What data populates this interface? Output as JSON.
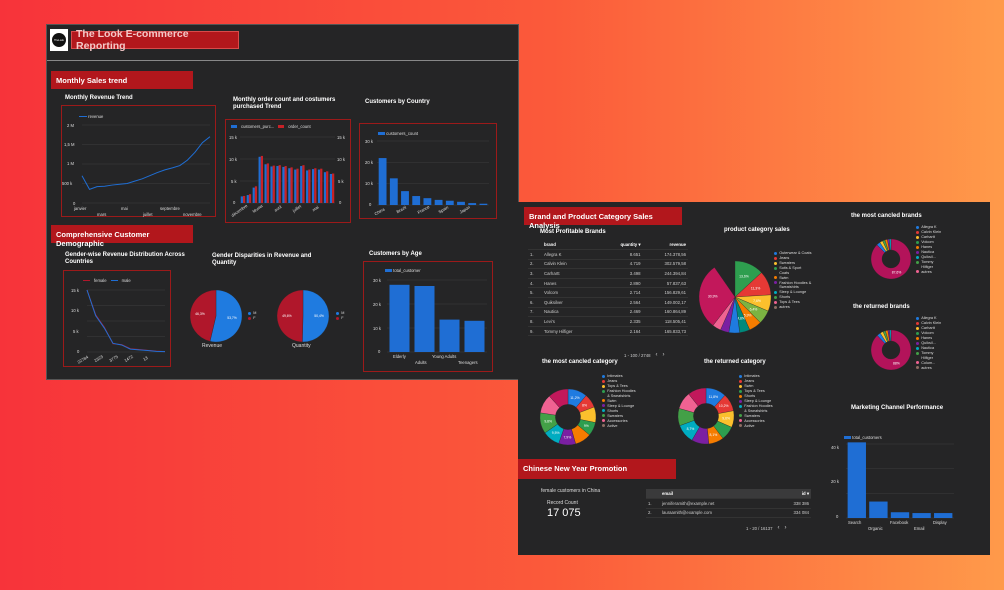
{
  "report1": {
    "title": "The Look E-commerce Reporting",
    "logo_text": "TheLook",
    "section_monthly": "Monthly Sales trend",
    "section_demo": "Comprehensive Customer Demographic",
    "monthly_revenue": {
      "title": "Monthly Revenue Trend",
      "legend": "revenue",
      "y_ticks": [
        "2 M",
        "1,5 M",
        "1 M",
        "500 k",
        "0"
      ],
      "x_ticks": [
        "janvier",
        "mars",
        "mai",
        "juillet",
        "septembre",
        "novembre"
      ]
    },
    "order_count": {
      "title": "Monthly order count and costumers purchased Trend",
      "legend": [
        "customers_purc...",
        "order_count"
      ],
      "y_ticks_left": [
        "15 k",
        "10 k",
        "5 k",
        "0"
      ],
      "y_ticks_right": [
        "15 k",
        "10 k",
        "5 k",
        "0"
      ],
      "x_ticks": [
        "décembre",
        "février",
        "avril",
        "juillet",
        "mai"
      ]
    },
    "customers_country": {
      "title": "Customers by Country",
      "legend": "customers_count",
      "y_ticks": [
        "30 k",
        "20 k",
        "10 k",
        "0"
      ],
      "x_ticks": [
        "China",
        "Brazil",
        "France",
        "Spain",
        "Japon"
      ]
    },
    "gender_revenue": {
      "title": "Gender-wise Revenue Distribution Across Countries",
      "legend": [
        "female",
        "male"
      ],
      "y_ticks": [
        "15 k",
        "10 k",
        "5 k",
        "0"
      ],
      "x_ticks": [
        "22784",
        "2323",
        "3775",
        "1472",
        "13"
      ]
    },
    "gender_disparities": {
      "title": "Gender Disparities in Revenue and Quantity",
      "pies": [
        {
          "label": "Revenue",
          "f_pct": "46,3%",
          "m_pct": "53,7%"
        },
        {
          "label": "Quantity",
          "f_pct": "49,6%",
          "m_pct": "50,4%"
        }
      ],
      "legend": [
        "M",
        "F"
      ]
    },
    "customers_age": {
      "title": "Customers by Age",
      "legend": "total_customer",
      "y_ticks": [
        "30 k",
        "20 k",
        "10 k",
        "0"
      ],
      "x_ticks": [
        "Elderly",
        "Adults",
        "Young Adults",
        "Teenagers"
      ]
    }
  },
  "report2": {
    "section_brand": "Brand and Product Category Sales Analysis",
    "profitable_title": "Most Profitable Brands",
    "table_headers": {
      "brand": "brand",
      "quantity": "quantity ▾",
      "revenue": "revenue"
    },
    "brands": [
      {
        "n": "1.",
        "brand": "Allegra K",
        "q": "8.651",
        "r": "174.378,56"
      },
      {
        "n": "2.",
        "brand": "Calvin Klein",
        "q": "4.719",
        "r": "302.579,58"
      },
      {
        "n": "3.",
        "brand": "Carhartt",
        "q": "3.498",
        "r": "244.394,84"
      },
      {
        "n": "4.",
        "brand": "Hanes",
        "q": "2.890",
        "r": "57.837,63"
      },
      {
        "n": "5.",
        "brand": "Volcom",
        "q": "2.714",
        "r": "156.829,61"
      },
      {
        "n": "6.",
        "brand": "Quiksilver",
        "q": "2.564",
        "r": "149.002,17"
      },
      {
        "n": "7.",
        "brand": "Nautica",
        "q": "2.469",
        "r": "160.864,89"
      },
      {
        "n": "8.",
        "brand": "Levi's",
        "q": "2.335",
        "r": "118.505,41"
      },
      {
        "n": "9.",
        "brand": "Tommy Hilfiger",
        "q": "2.164",
        "r": "165.833,73"
      }
    ],
    "brand_pager": "1 - 100 / 2748",
    "product_category_title": "product category sales",
    "product_category_pcts": [
      "13,6%",
      "11,3%",
      "7,6%",
      "6,4%",
      "5,9%",
      "4,8%",
      "30,9%"
    ],
    "product_category_legend": [
      "Outerwear & Coats",
      "Jeans",
      "Sweaters",
      "Suits & Sport Coats",
      "Swim",
      "Fashion Hoodies & Sweatshirts",
      "Sleep & Lounge",
      "Shorts",
      "Tops & Tees",
      "autres"
    ],
    "cancelled_brands_title": "the most cancled brands",
    "cancelled_brands_pct": "87,6%",
    "cancelled_brands_legend": [
      "Allegra K",
      "Calvin Klein",
      "Carhartt",
      "Volcom",
      "Hanes",
      "Nautica",
      "Quiksil...",
      "Tommy Hilfiger",
      "autres"
    ],
    "returned_brands_title": "the returned brands",
    "returned_brands_pct": "88%",
    "returned_brands_legend": [
      "Allegra K",
      "Calvin Klein",
      "Carhartt",
      "Volcom",
      "Hanes",
      "Quiksil...",
      "Nautica",
      "Tommy Hilfiger",
      "Colum...",
      "autres"
    ],
    "cancelled_category_title": "the most cancled category",
    "cancelled_category_pcts": [
      "11,2%",
      "8%",
      "9%",
      "7,9%",
      "9,5%",
      "9,8%"
    ],
    "cancelled_category_legend": [
      "Intimates",
      "Jeans",
      "Tops & Tees",
      "Fashion Hoodies & Sweatshirts",
      "Swim",
      "Sleep & Lounge",
      "Shorts",
      "Sweaters",
      "Accessories",
      "Active"
    ],
    "returned_category_title": "the returned category",
    "returned_category_pcts": [
      "11,8%",
      "10,2%",
      "9,6%",
      "8,1%",
      "8,7%"
    ],
    "returned_category_legend": [
      "Intimates",
      "Jeans",
      "Swim",
      "Tops & Tees",
      "Shorts",
      "Sleep & Lounge",
      "Fashion Hoodies & Sweatshirts",
      "Sweaters",
      "Accessories",
      "Active"
    ],
    "marketing_title": "Marketing Channel Performance",
    "marketing_legend": "total_customers",
    "marketing_y_ticks": [
      "40 k",
      "20 k",
      "0"
    ],
    "marketing_x_ticks": [
      "Search",
      "Organic",
      "Facebook",
      "Email",
      "Display"
    ],
    "section_cny": "Chinese New Year Promotion",
    "cny_subtitle": "female customers in China",
    "record_count_label": "Record Count",
    "record_count_value": "17 075",
    "email_headers": {
      "email": "email",
      "id": "id ▾"
    },
    "emails": [
      {
        "n": "1.",
        "email": "jenniferamith@example.net",
        "id": "338 386"
      },
      {
        "n": "2.",
        "email": "lauraamith@example.com",
        "id": "334 084"
      }
    ],
    "email_pager": "1 - 20 / 16137"
  },
  "chart_data": [
    {
      "type": "line",
      "title": "Monthly Revenue Trend",
      "series": [
        {
          "name": "revenue",
          "values": [
            700000,
            350000,
            420000,
            430000,
            460000,
            480000,
            500000,
            560000,
            620000,
            700000,
            780000,
            850000,
            900000,
            960000,
            1100000,
            1300000,
            1550000,
            1700000
          ]
        }
      ],
      "ylim": [
        0,
        2000000
      ]
    },
    {
      "type": "bar",
      "title": "Monthly order count and costumers purchased Trend",
      "series": [
        {
          "name": "customers_purc...",
          "values": [
            1500,
            1800,
            3500,
            10500,
            8800,
            8300,
            8400,
            8200,
            7900,
            7600,
            8400,
            7400,
            7700,
            7600,
            7000,
            6600
          ]
        },
        {
          "name": "order_count",
          "values": [
            1600,
            2000,
            3800,
            10700,
            9000,
            8500,
            8600,
            8400,
            8100,
            7800,
            8600,
            7600,
            7900,
            7800,
            7200,
            6700
          ]
        }
      ],
      "ylim": [
        0,
        15000
      ]
    },
    {
      "type": "bar",
      "title": "Customers by Country",
      "categories": [
        "China",
        "",
        "Brazil",
        "",
        "France",
        "",
        "Spain",
        "",
        "Japon",
        ""
      ],
      "values": [
        22000,
        12500,
        6500,
        4200,
        3200,
        2400,
        2000,
        1500,
        900,
        600
      ],
      "ylim": [
        0,
        30000
      ]
    },
    {
      "type": "line",
      "title": "Gender-wise Revenue Distribution Across Countries",
      "series": [
        {
          "name": "female",
          "values": [
            16000,
            9000,
            6000,
            2000,
            1800,
            800,
            600,
            400,
            200,
            100
          ]
        },
        {
          "name": "male",
          "values": [
            15500,
            8800,
            5800,
            2100,
            1700,
            700,
            500,
            350,
            150,
            80
          ]
        }
      ],
      "ylim": [
        0,
        15000
      ]
    },
    {
      "type": "bar",
      "title": "Customers by Age",
      "categories": [
        "Elderly",
        "Adults",
        "Young Adults",
        "Teenagers"
      ],
      "values": [
        28000,
        27500,
        13500,
        13000
      ],
      "ylim": [
        0,
        30000
      ]
    },
    {
      "type": "bar",
      "title": "Marketing Channel Performance",
      "categories": [
        "Search",
        "Organic",
        "Facebook",
        "Email",
        "Display"
      ],
      "values": [
        46000,
        10000,
        3500,
        3000,
        3000
      ],
      "ylim": [
        0,
        45000
      ]
    }
  ],
  "colors": {
    "accent_red": "#b2171c",
    "bar_blue": "#1f6ed4",
    "bar_red": "#c82127",
    "pie_red": "#b0172b",
    "pie_blue": "#1f7be0",
    "brand_pie": "#b3135a"
  }
}
